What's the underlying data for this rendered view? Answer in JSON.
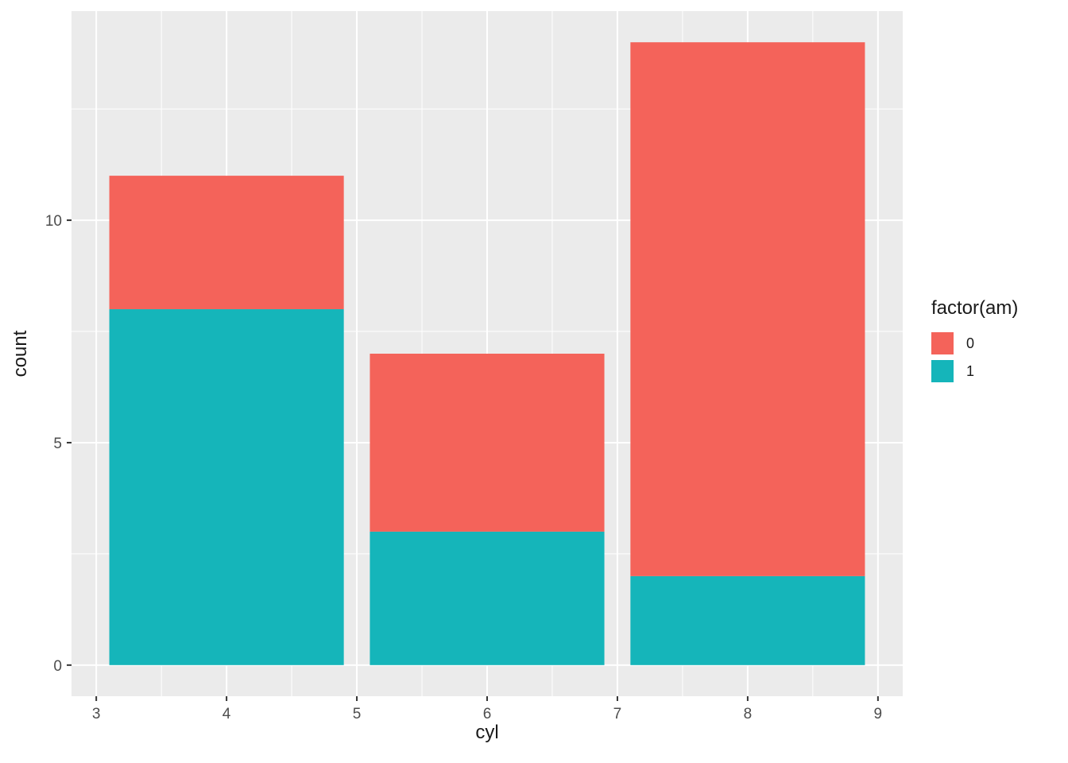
{
  "chart_data": {
    "type": "bar",
    "stacked": true,
    "title": "",
    "xlabel": "cyl",
    "ylabel": "count",
    "categories": [
      4,
      6,
      8
    ],
    "bar_width": 1.8,
    "series": [
      {
        "name": "1",
        "color": "#15b5ba",
        "values": [
          8,
          3,
          2
        ]
      },
      {
        "name": "0",
        "color": "#f4635a",
        "values": [
          3,
          4,
          12
        ]
      }
    ],
    "x_ticks": [
      3,
      4,
      5,
      6,
      7,
      8,
      9
    ],
    "y_ticks": [
      0,
      5,
      10
    ],
    "x_domain": [
      2.81,
      9.19
    ],
    "y_domain": [
      -0.7,
      14.7
    ],
    "panel_bg": "#ebebeb",
    "grid_color": "#ffffff",
    "tick_mark_color": "#333333",
    "tick_label_color": "#4d4d4d",
    "legend": {
      "title": "factor(am)",
      "position": "right",
      "entries": [
        {
          "label": "0",
          "color": "#f4635a"
        },
        {
          "label": "1",
          "color": "#15b5ba"
        }
      ]
    }
  }
}
